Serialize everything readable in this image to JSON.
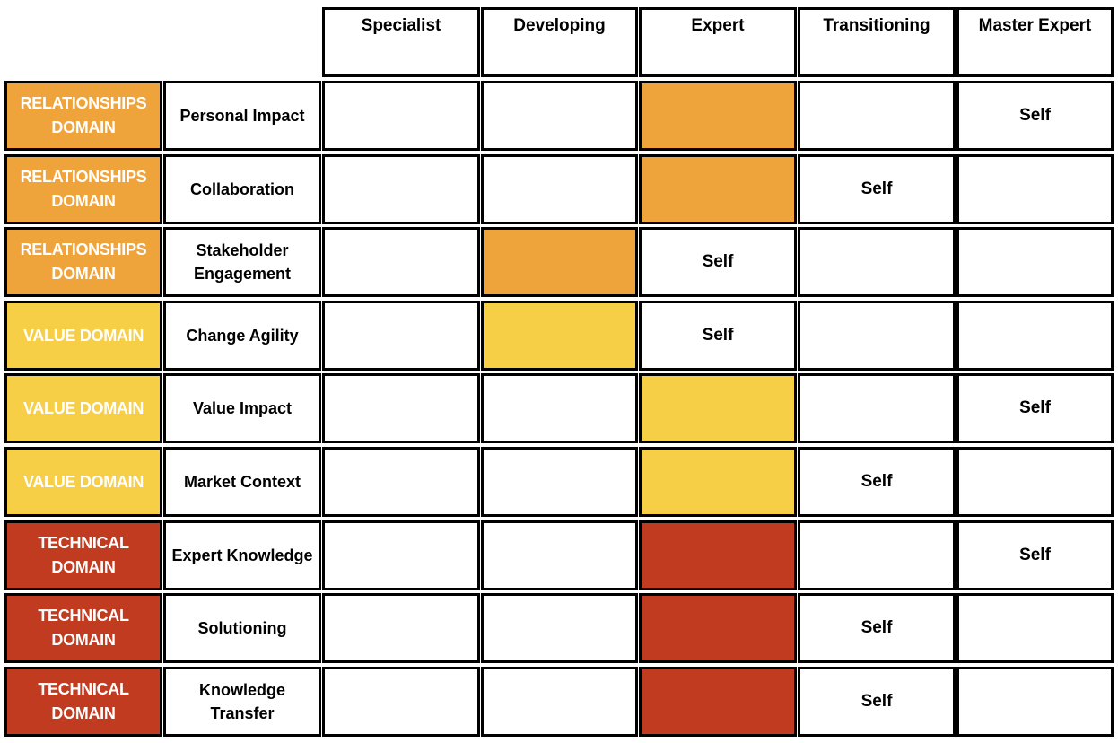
{
  "colors": {
    "relationships": "#EFA33B",
    "value": "#F7CF46",
    "technical": "#C13B20",
    "border": "#000000"
  },
  "levels": [
    "Specialist",
    "Developing",
    "Expert",
    "Transitioning",
    "Master Expert"
  ],
  "rows": [
    {
      "domain": "RELATIONSHIPS DOMAIN",
      "domain_color": "#EFA33B",
      "competency": "Personal Impact",
      "highlight_level": 2,
      "self_level": 4,
      "self_label": "Self"
    },
    {
      "domain": "RELATIONSHIPS DOMAIN",
      "domain_color": "#EFA33B",
      "competency": "Collaboration",
      "highlight_level": 2,
      "self_level": 3,
      "self_label": "Self"
    },
    {
      "domain": "RELATIONSHIPS DOMAIN",
      "domain_color": "#EFA33B",
      "competency": "Stakeholder Engagement",
      "highlight_level": 1,
      "self_level": 2,
      "self_label": "Self"
    },
    {
      "domain": "VALUE DOMAIN",
      "domain_color": "#F7CF46",
      "competency": "Change Agility",
      "highlight_level": 1,
      "self_level": 2,
      "self_label": "Self"
    },
    {
      "domain": "VALUE DOMAIN",
      "domain_color": "#F7CF46",
      "competency": "Value Impact",
      "highlight_level": 2,
      "self_level": 4,
      "self_label": "Self"
    },
    {
      "domain": "VALUE DOMAIN",
      "domain_color": "#F7CF46",
      "competency": "Market Context",
      "highlight_level": 2,
      "self_level": 3,
      "self_label": "Self"
    },
    {
      "domain": "TECHNICAL DOMAIN",
      "domain_color": "#C13B20",
      "competency": "Expert Knowledge",
      "highlight_level": 2,
      "self_level": 4,
      "self_label": "Self"
    },
    {
      "domain": "TECHNICAL DOMAIN",
      "domain_color": "#C13B20",
      "competency": "Solutioning",
      "highlight_level": 2,
      "self_level": 3,
      "self_label": "Self"
    },
    {
      "domain": "TECHNICAL DOMAIN",
      "domain_color": "#C13B20",
      "competency": "Knowledge Transfer",
      "highlight_level": 2,
      "self_level": 3,
      "self_label": "Self"
    }
  ]
}
